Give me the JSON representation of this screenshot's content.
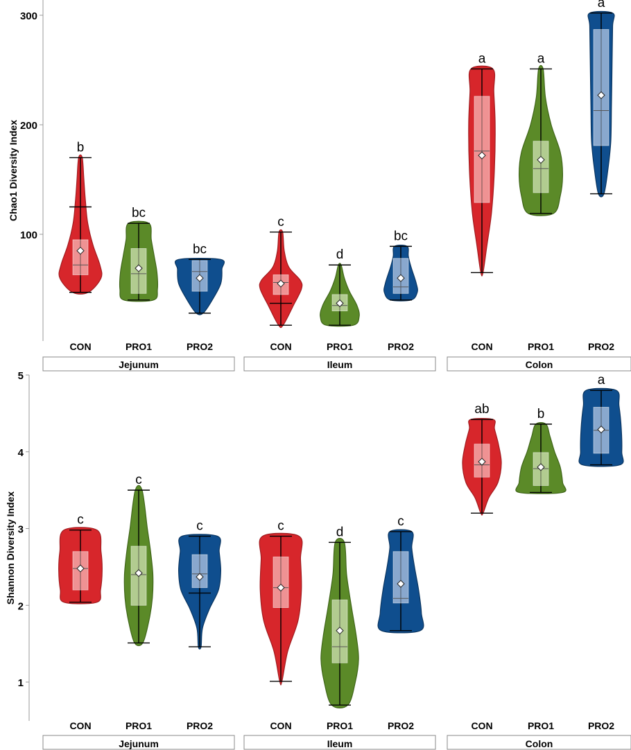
{
  "chart_data": [
    {
      "type": "violin",
      "ylabel": "Chao1 Diversity Index",
      "ylim": [
        0,
        300
      ],
      "yticks": [
        100,
        200,
        300
      ],
      "categories": [
        "CON",
        "PRO1",
        "PRO2"
      ],
      "facets": [
        "Jejunum",
        "Ileum",
        "Colon"
      ],
      "colors": {
        "CON": "#d7262b",
        "PRO1": "#5b8a28",
        "PRO2": "#0f4e8e"
      },
      "groups": [
        {
          "facet": "Jejunum",
          "category": "CON",
          "min": 47,
          "q1": 63,
          "median": 72,
          "q3": 95,
          "max": 170,
          "whisker_high": 125,
          "mean": 85,
          "letter": "b",
          "shape": [
            [
              47,
              0.35
            ],
            [
              60,
              0.9
            ],
            [
              72,
              0.85
            ],
            [
              90,
              0.55
            ],
            [
              110,
              0.32
            ],
            [
              130,
              0.22
            ],
            [
              150,
              0.15
            ],
            [
              170,
              0.08
            ]
          ]
        },
        {
          "facet": "Jejunum",
          "category": "PRO1",
          "min": 40,
          "q1": 46,
          "median": 64,
          "q3": 87,
          "max": 110,
          "mean": 69,
          "letter": "bc",
          "shape": [
            [
              40,
              0.65
            ],
            [
              50,
              0.82
            ],
            [
              65,
              0.8
            ],
            [
              80,
              0.68
            ],
            [
              95,
              0.55
            ],
            [
              110,
              0.45
            ]
          ]
        },
        {
          "facet": "Jejunum",
          "category": "PRO2",
          "min": 28,
          "q1": 48,
          "median": 66,
          "q3": 76,
          "max": 77,
          "mean": 60,
          "letter": "bc",
          "shape": [
            [
              28,
              0.15
            ],
            [
              40,
              0.55
            ],
            [
              55,
              0.92
            ],
            [
              68,
              0.97
            ],
            [
              77,
              0.92
            ]
          ]
        },
        {
          "facet": "Ileum",
          "category": "CON",
          "min": 17,
          "q1": 45,
          "median": 56,
          "q3": 63,
          "max": 102,
          "whisker_low": 37,
          "mean": 55,
          "letter": "c",
          "shape": [
            [
              17,
              0.1
            ],
            [
              35,
              0.55
            ],
            [
              50,
              0.9
            ],
            [
              58,
              0.85
            ],
            [
              70,
              0.35
            ],
            [
              85,
              0.15
            ],
            [
              102,
              0.08
            ]
          ]
        },
        {
          "facet": "Ileum",
          "category": "PRO1",
          "min": 17,
          "q1": 30,
          "median": 35,
          "q3": 45,
          "max": 72,
          "mean": 37,
          "letter": "d",
          "shape": [
            [
              17,
              0.6
            ],
            [
              25,
              0.85
            ],
            [
              35,
              0.75
            ],
            [
              48,
              0.42
            ],
            [
              60,
              0.2
            ],
            [
              72,
              0.06
            ]
          ]
        },
        {
          "facet": "Ileum",
          "category": "PRO2",
          "min": 40,
          "q1": 46,
          "median": 52,
          "q3": 78,
          "max": 89,
          "mean": 60,
          "letter": "bc",
          "shape": [
            [
              40,
              0.45
            ],
            [
              47,
              0.72
            ],
            [
              55,
              0.68
            ],
            [
              70,
              0.45
            ],
            [
              80,
              0.33
            ],
            [
              89,
              0.28
            ]
          ]
        },
        {
          "facet": "Colon",
          "category": "CON",
          "min": 65,
          "q1": 129,
          "median": 176,
          "q3": 226,
          "max": 251,
          "mean": 172,
          "letter": "a",
          "shape": [
            [
              65,
              0.05
            ],
            [
              90,
              0.22
            ],
            [
              120,
              0.42
            ],
            [
              160,
              0.55
            ],
            [
              200,
              0.58
            ],
            [
              230,
              0.52
            ],
            [
              251,
              0.48
            ]
          ]
        },
        {
          "facet": "Colon",
          "category": "PRO1",
          "min": 119,
          "q1": 138,
          "median": 160,
          "q3": 185,
          "max": 251,
          "mean": 168,
          "letter": "a",
          "shape": [
            [
              119,
              0.55
            ],
            [
              135,
              0.85
            ],
            [
              155,
              0.95
            ],
            [
              175,
              0.85
            ],
            [
              200,
              0.45
            ],
            [
              225,
              0.2
            ],
            [
              251,
              0.1
            ]
          ]
        },
        {
          "facet": "Colon",
          "category": "PRO2",
          "min": 137,
          "q1": 181,
          "median": 213,
          "q3": 287,
          "max": 302,
          "mean": 227,
          "letter": "a",
          "shape": [
            [
              137,
              0.12
            ],
            [
              160,
              0.3
            ],
            [
              185,
              0.42
            ],
            [
              220,
              0.45
            ],
            [
              260,
              0.48
            ],
            [
              290,
              0.5
            ],
            [
              302,
              0.5
            ]
          ]
        }
      ]
    },
    {
      "type": "violin",
      "ylabel": "Shannon Diversity Index",
      "ylim": [
        0.5,
        5
      ],
      "yticks": [
        1,
        2,
        3,
        4,
        5
      ],
      "categories": [
        "CON",
        "PRO1",
        "PRO2"
      ],
      "facets": [
        "Jejunum",
        "Ileum",
        "Colon"
      ],
      "colors": {
        "CON": "#d7262b",
        "PRO1": "#5b8a28",
        "PRO2": "#0f4e8e"
      },
      "groups": [
        {
          "facet": "Jejunum",
          "category": "CON",
          "min": 2.04,
          "q1": 2.2,
          "median": 2.48,
          "q3": 2.7,
          "max": 2.98,
          "mean": 2.48,
          "letter": "c",
          "shape": [
            [
              2.04,
              0.72
            ],
            [
              2.2,
              0.88
            ],
            [
              2.45,
              0.95
            ],
            [
              2.7,
              0.9
            ],
            [
              2.98,
              0.72
            ]
          ]
        },
        {
          "facet": "Jejunum",
          "category": "PRO1",
          "min": 1.51,
          "q1": 2.0,
          "median": 2.4,
          "q3": 2.77,
          "max": 3.5,
          "mean": 2.42,
          "letter": "c",
          "shape": [
            [
              1.51,
              0.18
            ],
            [
              1.8,
              0.45
            ],
            [
              2.1,
              0.6
            ],
            [
              2.4,
              0.62
            ],
            [
              2.7,
              0.52
            ],
            [
              3.0,
              0.38
            ],
            [
              3.5,
              0.15
            ]
          ]
        },
        {
          "facet": "Jejunum",
          "category": "PRO2",
          "min": 1.46,
          "q1": 2.23,
          "median": 2.41,
          "q3": 2.66,
          "max": 2.9,
          "whisker_low": 2.16,
          "mean": 2.37,
          "letter": "c",
          "shape": [
            [
              1.46,
              0.06
            ],
            [
              1.7,
              0.12
            ],
            [
              1.95,
              0.42
            ],
            [
              2.2,
              0.82
            ],
            [
              2.45,
              0.92
            ],
            [
              2.7,
              0.85
            ],
            [
              2.9,
              0.78
            ]
          ]
        },
        {
          "facet": "Ileum",
          "category": "CON",
          "min": 1.01,
          "q1": 1.97,
          "median": 2.23,
          "q3": 2.63,
          "max": 2.9,
          "mean": 2.23,
          "letter": "c",
          "shape": [
            [
              1.01,
              0.05
            ],
            [
              1.4,
              0.3
            ],
            [
              1.8,
              0.75
            ],
            [
              2.2,
              0.9
            ],
            [
              2.6,
              0.86
            ],
            [
              2.9,
              0.8
            ]
          ]
        },
        {
          "facet": "Ileum",
          "category": "PRO1",
          "min": 0.7,
          "q1": 1.25,
          "median": 1.46,
          "q3": 2.07,
          "max": 2.82,
          "mean": 1.67,
          "letter": "d",
          "shape": [
            [
              0.7,
              0.35
            ],
            [
              1.0,
              0.68
            ],
            [
              1.3,
              0.82
            ],
            [
              1.6,
              0.72
            ],
            [
              2.0,
              0.5
            ],
            [
              2.4,
              0.3
            ],
            [
              2.82,
              0.2
            ]
          ]
        },
        {
          "facet": "Ileum",
          "category": "PRO2",
          "min": 1.67,
          "q1": 2.03,
          "median": 2.09,
          "q3": 2.7,
          "max": 2.96,
          "mean": 2.28,
          "letter": "c",
          "shape": [
            [
              1.67,
              0.85
            ],
            [
              1.9,
              0.9
            ],
            [
              2.2,
              0.78
            ],
            [
              2.5,
              0.6
            ],
            [
              2.75,
              0.48
            ],
            [
              2.96,
              0.48
            ]
          ]
        }
      ]
    },
    {
      "type": "violin",
      "facets": [
        "Colon"
      ],
      "ylim": [
        0.5,
        5
      ],
      "groups": [
        {
          "facet": "Colon",
          "category": "CON",
          "min": 3.2,
          "q1": 3.67,
          "median": 3.83,
          "q3": 4.1,
          "max": 4.42,
          "mean": 3.87,
          "letter": "ab",
          "shape": [
            [
              3.2,
              0.05
            ],
            [
              3.4,
              0.3
            ],
            [
              3.6,
              0.7
            ],
            [
              3.85,
              0.85
            ],
            [
              4.1,
              0.72
            ],
            [
              4.3,
              0.55
            ],
            [
              4.42,
              0.5
            ]
          ]
        },
        {
          "facet": "Colon",
          "category": "PRO1",
          "min": 3.47,
          "q1": 3.56,
          "median": 3.78,
          "q3": 3.99,
          "max": 4.36,
          "mean": 3.8,
          "letter": "b",
          "shape": [
            [
              3.47,
              0.95
            ],
            [
              3.6,
              0.95
            ],
            [
              3.8,
              0.85
            ],
            [
              4.0,
              0.6
            ],
            [
              4.2,
              0.4
            ],
            [
              4.36,
              0.22
            ]
          ]
        },
        {
          "facet": "Colon",
          "category": "PRO2",
          "min": 3.83,
          "q1": 3.98,
          "median": 4.28,
          "q3": 4.58,
          "max": 4.8,
          "mean": 4.29,
          "letter": "a",
          "shape": [
            [
              3.83,
              0.82
            ],
            [
              4.0,
              0.9
            ],
            [
              4.3,
              0.88
            ],
            [
              4.6,
              0.78
            ],
            [
              4.8,
              0.65
            ]
          ]
        }
      ]
    }
  ]
}
